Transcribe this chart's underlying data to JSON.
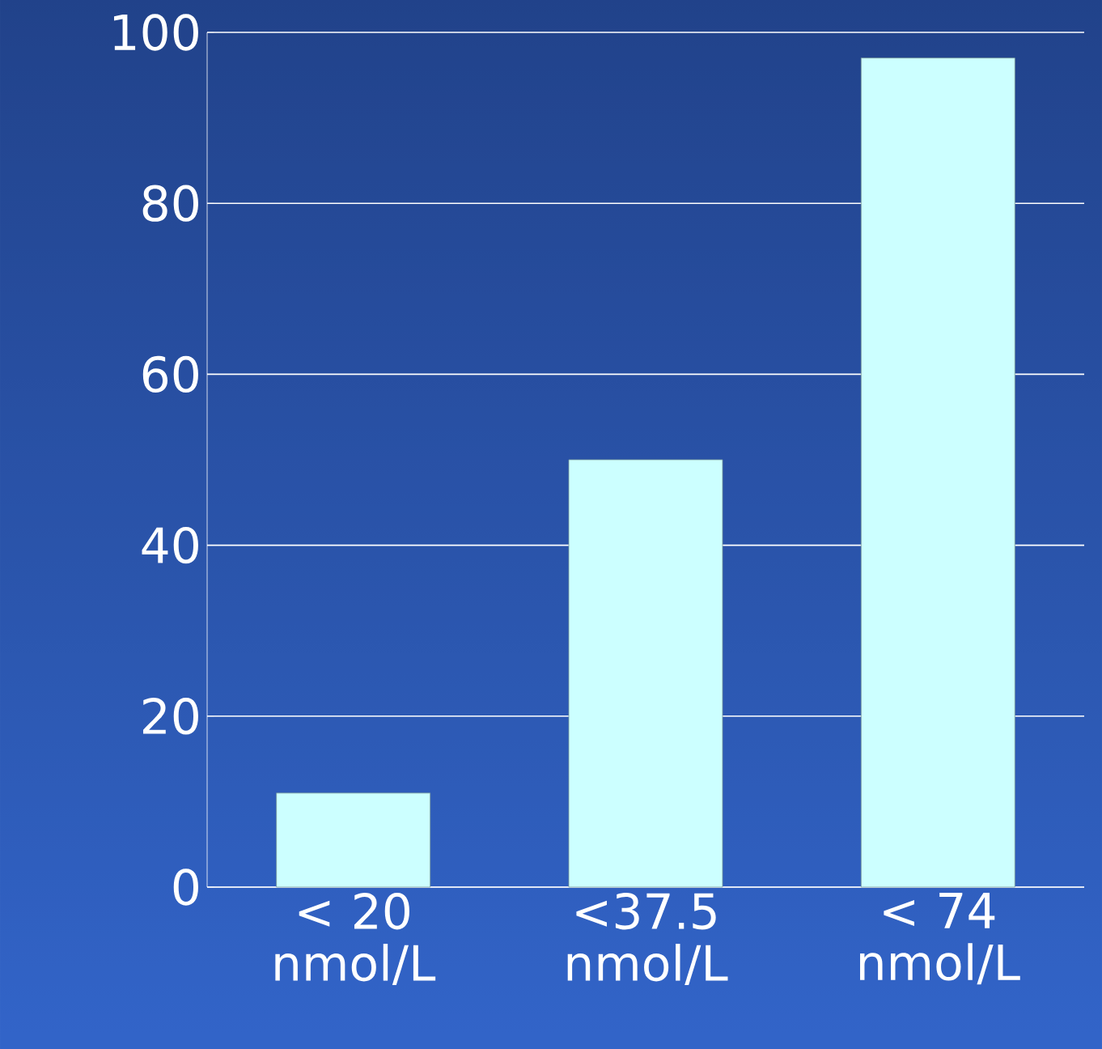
{
  "chart_data": {
    "type": "bar",
    "categories": [
      "< 20 nmol/L",
      "<37.5 nmol/L",
      "< 74 nmol/L"
    ],
    "values": [
      11,
      50,
      97
    ],
    "color": "#ccffff",
    "ylim": [
      0,
      100
    ],
    "yticks": [
      0,
      20,
      40,
      60,
      80,
      100
    ],
    "grid": "y"
  }
}
